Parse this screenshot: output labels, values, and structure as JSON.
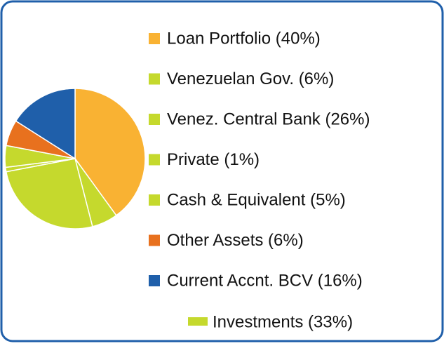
{
  "chart_data": {
    "type": "pie",
    "categories": [
      "Loan Portfolio (40%)",
      "Venezuelan Gov. (6%)",
      "Venez. Central Bank (26%)",
      "Private (1%)",
      "Cash & Equivalent (5%)",
      "Other Assets (6%)",
      "Current Accnt. BCV (16%)"
    ],
    "values": [
      40,
      6,
      26,
      1,
      5,
      6,
      16
    ],
    "colors": [
      "#f9b233",
      "#c5d92d",
      "#c5d92d",
      "#c5d92d",
      "#c5d92d",
      "#e8711e",
      "#1f5faa"
    ],
    "group_legend": {
      "label": "Investments (33%)",
      "color": "#c5d92d"
    }
  }
}
